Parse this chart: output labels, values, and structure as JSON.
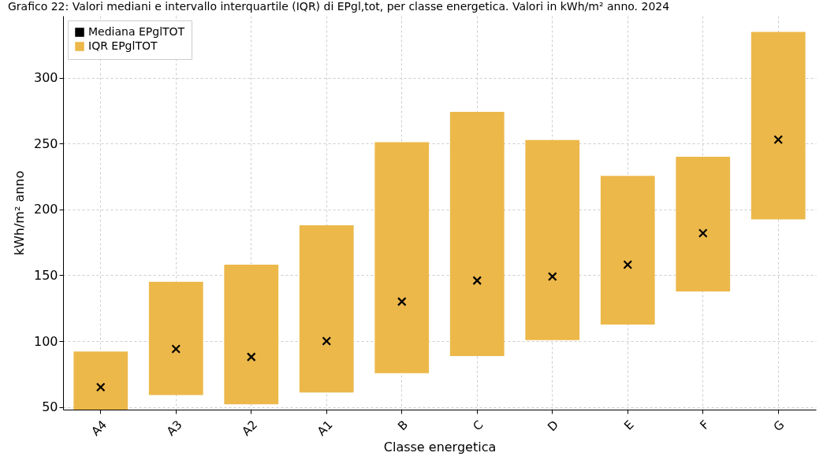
{
  "chart_data": {
    "type": "bar",
    "title": "Grafico 22: Valori mediani e intervallo interquartile (IQR) di EPgl,tot, per classe energetica. Valori in kWh/m² anno. 2024",
    "xlabel": "Classe energetica",
    "ylabel": "kWh/m² anno",
    "categories": [
      "A4",
      "A3",
      "A2",
      "A1",
      "B",
      "C",
      "D",
      "E",
      "F",
      "G"
    ],
    "series": [
      {
        "name": "IQR EPglTOT",
        "color": "#ecb84a",
        "base": [
          48,
          59,
          52,
          61,
          75.6,
          88.7,
          100.7,
          112.6,
          137.7,
          192.4
        ],
        "values": [
          44.1,
          86,
          106,
          127,
          175.4,
          185.3,
          152,
          112.8,
          102.3,
          142.3
        ]
      },
      {
        "name": "Mediana EPglTOT",
        "type": "scatter",
        "color": "#000000",
        "x": [
          "A4",
          "A3",
          "A2",
          "A1",
          "B",
          "C",
          "D",
          "E",
          "F",
          "G"
        ],
        "values": [
          65,
          94,
          88,
          100,
          130,
          146,
          149,
          158,
          182,
          253
        ]
      }
    ],
    "ylim": [
      48,
      347
    ],
    "yticks": [
      50,
      100,
      150,
      200,
      250,
      300
    ],
    "grid": true,
    "legend": "top left",
    "marker": "cross"
  }
}
